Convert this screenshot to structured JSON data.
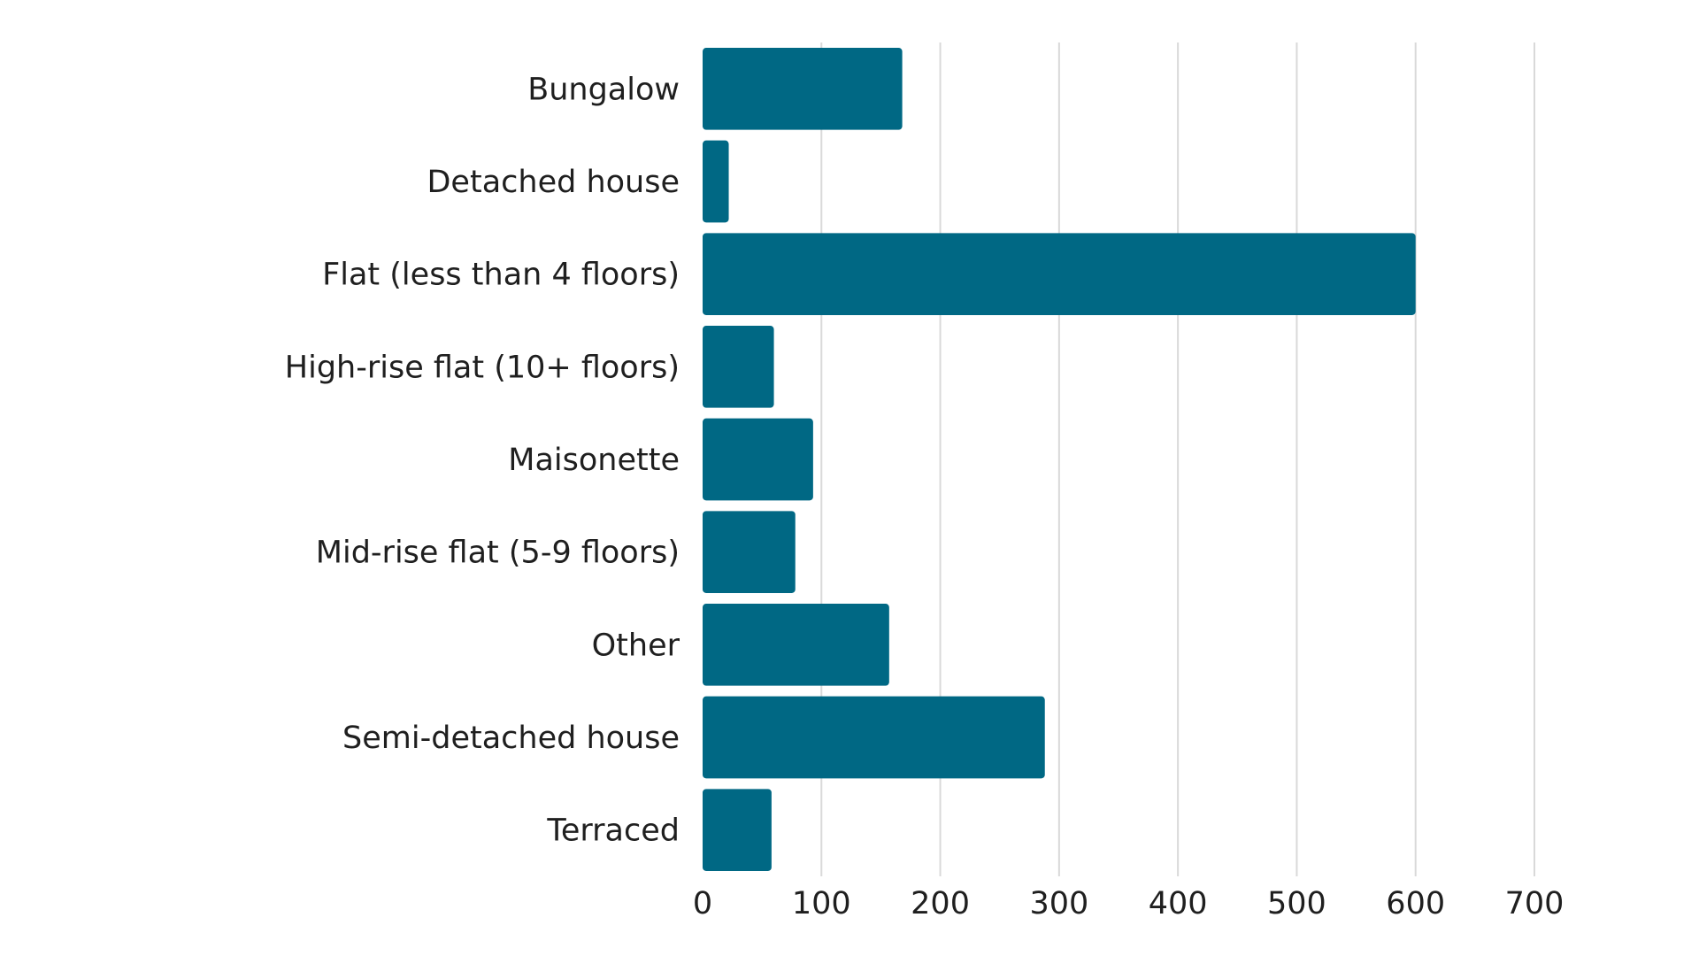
{
  "chart_data": {
    "type": "bar",
    "orientation": "horizontal",
    "categories": [
      "Bungalow",
      "Detached house",
      "Flat (less than 4 floors)",
      "High-rise flat (10+ floors)",
      "Maisonette",
      "Mid-rise flat (5-9 floors)",
      "Other",
      "Semi-detached house",
      "Terraced"
    ],
    "values": [
      168,
      22,
      600,
      60,
      93,
      78,
      157,
      288,
      58
    ],
    "xlim": [
      0,
      700
    ],
    "xticks": [
      "0",
      "100",
      "200",
      "300",
      "400",
      "500",
      "600",
      "700"
    ],
    "title": "",
    "xlabel": "",
    "ylabel": "",
    "grid": "vertical",
    "legend": "none",
    "bar_color": "#006884"
  }
}
